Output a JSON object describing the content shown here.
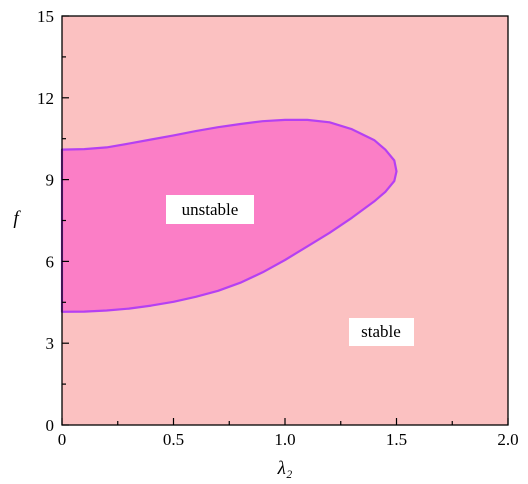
{
  "chart_data": {
    "type": "area",
    "title": "",
    "xlabel": "λ₂",
    "ylabel": "f",
    "xlim": [
      0,
      2.0
    ],
    "ylim": [
      0,
      15
    ],
    "x_ticks": [
      "0",
      "0.5",
      "1.0",
      "1.5",
      "2.0"
    ],
    "y_ticks": [
      "0",
      "3",
      "6",
      "9",
      "12",
      "15"
    ],
    "grid": false,
    "legend": "none",
    "background_color": "#fbc1c1",
    "regions": [
      {
        "label": "unstable",
        "fill_color": "#fb7ec6",
        "boundary_color": "#b540f2",
        "boundary": {
          "x": [
            0,
            0.1,
            0.2,
            0.3,
            0.4,
            0.5,
            0.6,
            0.7,
            0.8,
            0.9,
            1.0,
            1.1,
            1.2,
            1.3,
            1.4,
            1.45,
            1.49,
            1.5,
            1.49,
            1.45,
            1.4,
            1.3,
            1.2,
            1.1,
            1.0,
            0.9,
            0.8,
            0.7,
            0.6,
            0.5,
            0.4,
            0.3,
            0.2,
            0.1,
            0
          ],
          "y": [
            10.1,
            10.12,
            10.18,
            10.32,
            10.47,
            10.62,
            10.78,
            10.92,
            11.04,
            11.14,
            11.19,
            11.19,
            11.1,
            10.85,
            10.45,
            10.1,
            9.7,
            9.3,
            8.95,
            8.55,
            8.2,
            7.6,
            7.05,
            6.55,
            6.05,
            5.6,
            5.22,
            4.92,
            4.7,
            4.52,
            4.38,
            4.27,
            4.2,
            4.16,
            4.15
          ]
        }
      },
      {
        "label": "stable"
      }
    ]
  }
}
